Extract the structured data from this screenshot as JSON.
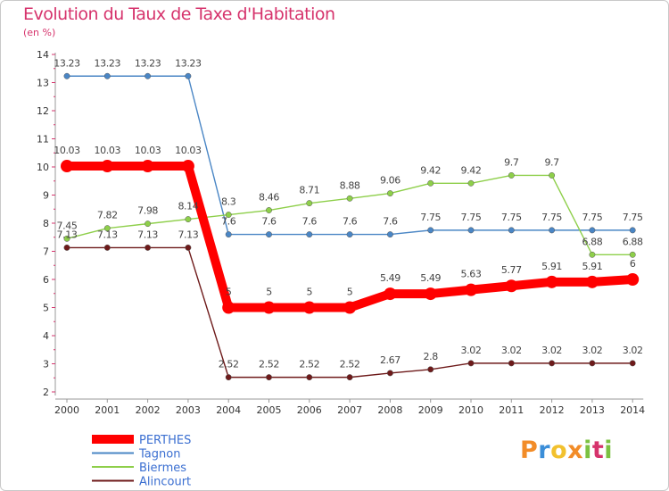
{
  "page": {
    "title": "Evolution du Taux de Taxe d'Habitation",
    "subtitle": "(en %)"
  },
  "logo": {
    "text": "Proxiti"
  },
  "chart_data": {
    "type": "line",
    "title": "Evolution du Taux de Taxe d'Habitation",
    "ylabel": "(en %)",
    "xlabel": "",
    "x": [
      "2000",
      "2001",
      "2002",
      "2003",
      "2004",
      "2005",
      "2006",
      "2007",
      "2008",
      "2009",
      "2010",
      "2011",
      "2012",
      "2013",
      "2014"
    ],
    "ylim": [
      2,
      14
    ],
    "yticks": [
      2,
      3,
      4,
      5,
      6,
      7,
      8,
      9,
      10,
      11,
      12,
      13,
      14
    ],
    "grid": false,
    "legend_position": "bottom-left",
    "series": [
      {
        "name": "PERTHES",
        "color": "#ff0000",
        "labelled": true,
        "values": [
          10.03,
          10.03,
          10.03,
          10.03,
          5,
          5,
          5,
          5,
          5.49,
          5.49,
          5.63,
          5.77,
          5.91,
          5.91,
          6
        ],
        "labels": [
          "10.03",
          "10.03",
          "10.03",
          "10.03",
          "5",
          "5",
          "5",
          "5",
          "5.49",
          "5.49",
          "5.63",
          "5.77",
          "5.91",
          "5.91",
          "6"
        ]
      },
      {
        "name": "Tagnon",
        "color": "#4a86c5",
        "labelled": true,
        "values": [
          13.23,
          13.23,
          13.23,
          13.23,
          7.6,
          7.6,
          7.6,
          7.6,
          7.6,
          7.75,
          7.75,
          7.75,
          7.75,
          7.75,
          7.75
        ],
        "labels": [
          "13.23",
          "13.23",
          "13.23",
          "13.23",
          "7.6",
          "7.6",
          "7.6",
          "7.6",
          "7.6",
          "7.75",
          "7.75",
          "7.75",
          "7.75",
          "7.75",
          "7.75"
        ]
      },
      {
        "name": "Biermes",
        "color": "#8ecf4a",
        "labelled": true,
        "values": [
          7.45,
          7.82,
          7.98,
          8.14,
          8.3,
          8.46,
          8.71,
          8.88,
          9.06,
          9.42,
          9.42,
          9.7,
          9.7,
          6.88,
          6.88
        ],
        "labels": [
          "7.45",
          "7.82",
          "7.98",
          "8.14",
          "8.3",
          "8.46",
          "8.71",
          "8.88",
          "9.06",
          "9.42",
          "9.42",
          "9.7",
          "9.7",
          "6.88",
          "6.88"
        ]
      },
      {
        "name": "Alincourt",
        "color": "#6e1a1a",
        "labelled": true,
        "values": [
          7.13,
          7.13,
          7.13,
          7.13,
          2.52,
          2.52,
          2.52,
          2.52,
          2.67,
          2.8,
          3.02,
          3.02,
          3.02,
          3.02,
          3.02
        ],
        "labels": [
          "7.13",
          "7.13",
          "7.13",
          "7.13",
          "2.52",
          "2.52",
          "2.52",
          "2.52",
          "2.67",
          "2.8",
          "3.02",
          "3.02",
          "3.02",
          "3.02",
          "3.02"
        ]
      }
    ]
  }
}
